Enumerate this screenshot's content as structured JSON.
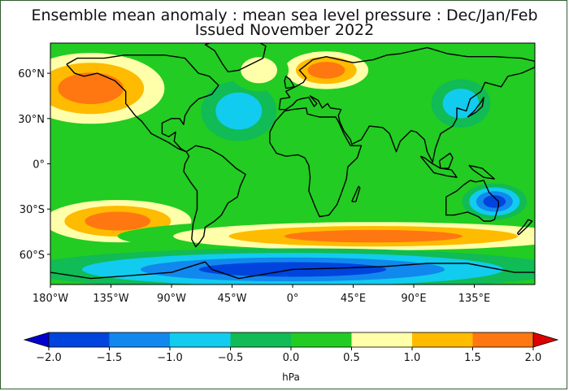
{
  "title": "Ensemble mean anomaly : mean sea level pressure : Dec/Jan/Feb",
  "subtitle": "Issued November 2022",
  "map": {
    "projection": "equirectangular",
    "lon_range": [
      -180,
      180
    ],
    "lat_range": [
      -80,
      80
    ],
    "lat_ticks": [
      {
        "value": 60,
        "label": "60°N"
      },
      {
        "value": 30,
        "label": "30°N"
      },
      {
        "value": 0,
        "label": "0°"
      },
      {
        "value": -30,
        "label": "30°S"
      },
      {
        "value": -60,
        "label": "60°S"
      }
    ],
    "lon_ticks": [
      {
        "value": -180,
        "label": "180°W"
      },
      {
        "value": -135,
        "label": "135°W"
      },
      {
        "value": -90,
        "label": "90°W"
      },
      {
        "value": -45,
        "label": "45°W"
      },
      {
        "value": 0,
        "label": "0°"
      },
      {
        "value": 45,
        "label": "45°E"
      },
      {
        "value": 90,
        "label": "90°E"
      },
      {
        "value": 135,
        "label": "135°E"
      }
    ],
    "background_class_color": "#22cc22",
    "anomaly_features": [
      {
        "name": "north-pacific-high",
        "lon": -150,
        "lat": 50,
        "value": 2.0
      },
      {
        "name": "north-atlantic-low",
        "lon": -40,
        "lat": 35,
        "value": -1.0
      },
      {
        "name": "europe-high",
        "lon": 25,
        "lat": 62,
        "value": 1.7
      },
      {
        "name": "north-atlantic-high",
        "lon": -25,
        "lat": 62,
        "value": 0.7
      },
      {
        "name": "east-asia-low",
        "lon": 125,
        "lat": 40,
        "value": -0.8
      },
      {
        "name": "australia-low",
        "lon": 150,
        "lat": -25,
        "value": -1.6
      },
      {
        "name": "south-pacific-high",
        "lon": -130,
        "lat": -38,
        "value": 1.8
      },
      {
        "name": "southern-ocean-ridge",
        "lon": 60,
        "lat": -48,
        "value": 1.9
      },
      {
        "name": "antarctic-low",
        "lon": 0,
        "lat": -70,
        "value": -2.0
      }
    ]
  },
  "colorbar": {
    "unit": "hPa",
    "min": -2.0,
    "max": 2.0,
    "boundaries": [
      "−2.0",
      "−1.5",
      "−1.0",
      "−0.5",
      "0.0",
      "0.5",
      "1.0",
      "1.5",
      "2.0"
    ],
    "colors": [
      "#0044dd",
      "#1188ee",
      "#11ccee",
      "#11bb55",
      "#22cc22",
      "#ffffaa",
      "#ffbb00",
      "#ff7711",
      "#ee3311"
    ],
    "extend_low_color": "#0000cc",
    "extend_high_color": "#dd0000"
  }
}
